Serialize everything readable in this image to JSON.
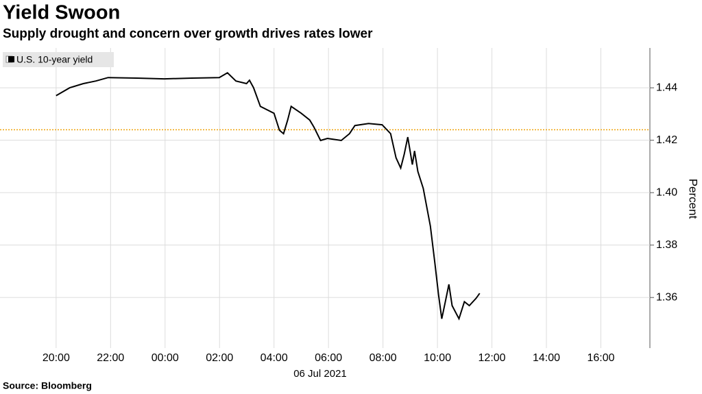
{
  "chart_data": {
    "type": "line",
    "title": "Yield Swoon",
    "subtitle": "Supply drought and concern over growth drives rates lower",
    "source": "Source: Bloomberg",
    "y_axis_label": "Percent",
    "x_date_label": "06 Jul 2021",
    "series": [
      {
        "name": "U.S. 10-year yield",
        "color": "#000000",
        "x": [
          -4,
          -3.5,
          -3,
          -2.54,
          -2.09,
          -1.03,
          -0.03,
          0.98,
          1.99,
          2.29,
          2.6,
          2.99,
          3.1,
          3.25,
          3.5,
          4.0,
          4.2,
          4.35,
          4.5,
          4.63,
          5.0,
          5.31,
          5.46,
          5.71,
          5.96,
          6.47,
          6.77,
          6.97,
          7.47,
          7.97,
          8.28,
          8.48,
          8.65,
          8.78,
          8.91,
          9.08,
          9.16,
          9.28,
          9.48,
          9.74,
          9.91,
          10.04,
          10.16,
          10.29,
          10.42,
          10.54,
          10.79,
          10.99,
          11.17,
          11.42,
          11.55
        ],
        "values": [
          1.437,
          1.44,
          1.4416,
          1.4426,
          1.4439,
          1.4437,
          1.4434,
          1.4437,
          1.4439,
          1.4457,
          1.4426,
          1.4416,
          1.4429,
          1.44,
          1.4329,
          1.4303,
          1.4238,
          1.4225,
          1.4277,
          1.4329,
          1.4303,
          1.4277,
          1.4251,
          1.4199,
          1.4207,
          1.4199,
          1.4225,
          1.4256,
          1.4264,
          1.4259,
          1.4225,
          1.4133,
          1.4094,
          1.4146,
          1.4212,
          1.4107,
          1.4159,
          1.4081,
          1.4016,
          1.3872,
          1.3728,
          1.361,
          1.3519,
          1.3584,
          1.365,
          1.3569,
          1.3519,
          1.3584,
          1.3569,
          1.3597,
          1.3616
        ]
      }
    ],
    "reference_line": {
      "value": 1.424,
      "color": "#f0a30a"
    },
    "xlim": [
      -6.06,
      17.8
    ],
    "xticks": [
      {
        "value": -4,
        "label": "20:00"
      },
      {
        "value": -2,
        "label": "22:00"
      },
      {
        "value": 0,
        "label": "00:00"
      },
      {
        "value": 2,
        "label": "02:00"
      },
      {
        "value": 4,
        "label": "04:00"
      },
      {
        "value": 6,
        "label": "06:00"
      },
      {
        "value": 8,
        "label": "08:00"
      },
      {
        "value": 10,
        "label": "10:00"
      },
      {
        "value": 12,
        "label": "12:00"
      },
      {
        "value": 14,
        "label": "14:00"
      },
      {
        "value": 16,
        "label": "16:00"
      }
    ],
    "ylim": [
      1.3407,
      1.4552
    ],
    "yticks": [
      {
        "value": 1.36,
        "label": "1.36"
      },
      {
        "value": 1.38,
        "label": "1.38"
      },
      {
        "value": 1.4,
        "label": "1.40"
      },
      {
        "value": 1.42,
        "label": "1.42"
      },
      {
        "value": 1.44,
        "label": "1.44"
      }
    ],
    "grid": true,
    "legend": "top-left"
  }
}
